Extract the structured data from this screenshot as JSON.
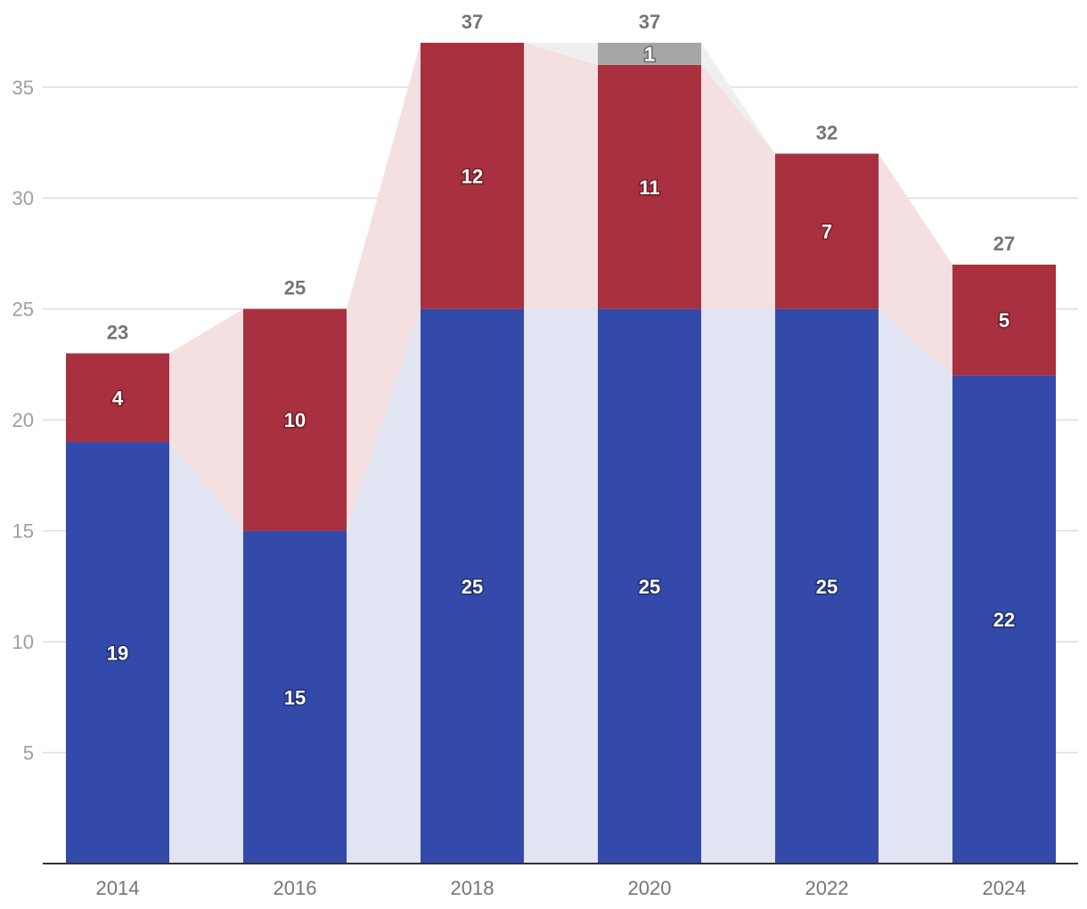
{
  "chart_data": {
    "type": "bar",
    "stacked": true,
    "title": "",
    "xlabel": "",
    "ylabel": "",
    "categories": [
      "2014",
      "2016",
      "2018",
      "2020",
      "2022",
      "2024"
    ],
    "series": [
      {
        "name": "Blue",
        "color": "#334aab",
        "area_color": "#e1e4f2",
        "values": [
          19,
          15,
          25,
          25,
          25,
          22
        ]
      },
      {
        "name": "Red",
        "color": "#a8303f",
        "area_color": "#f4dfe1",
        "values": [
          4,
          10,
          12,
          11,
          7,
          5
        ]
      },
      {
        "name": "Other",
        "color": "#a6a6a6",
        "area_color": "#efefef",
        "values": [
          0,
          0,
          0,
          1,
          0,
          0
        ]
      }
    ],
    "totals": [
      23,
      25,
      37,
      37,
      32,
      27
    ],
    "yticks": [
      5,
      10,
      15,
      20,
      25,
      30,
      35
    ],
    "ylim": [
      0,
      37
    ],
    "grid": true,
    "legend": "none"
  }
}
